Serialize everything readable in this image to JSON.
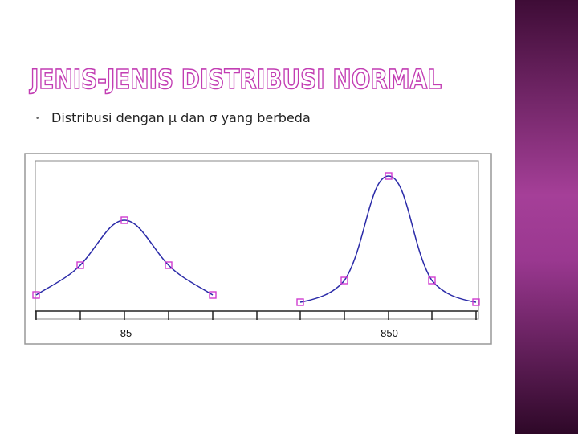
{
  "title": "JENIS-JENIS DISTRIBUSI NORMAL",
  "bullet": "Distribusi dengan μ dan σ yang berbeda",
  "figure": {
    "x_labels": [
      "85",
      "850"
    ]
  }
}
